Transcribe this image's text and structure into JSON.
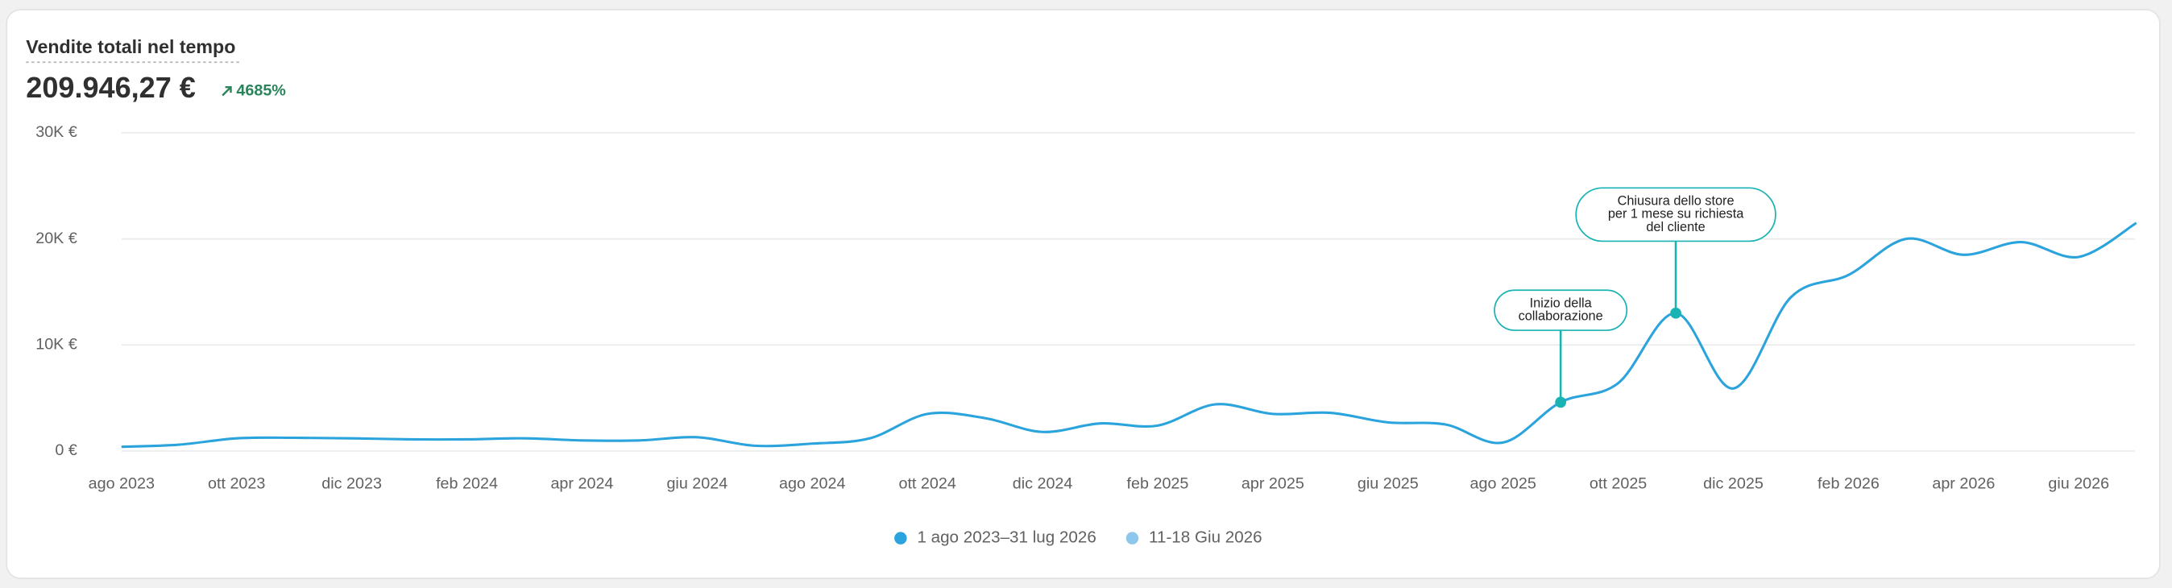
{
  "chart_data": {
    "type": "line",
    "title": "Vendite totali nel tempo",
    "total": "209.946,27 €",
    "change": "4685%",
    "categories": [
      "ago 2023",
      null,
      "ott 2023",
      null,
      "dic 2023",
      null,
      "feb 2024",
      null,
      "apr 2024",
      null,
      "giu 2024",
      null,
      "ago 2024",
      null,
      "ott 2024",
      null,
      "dic 2024",
      null,
      "feb 2025",
      null,
      "apr 2025",
      null,
      "giu 2025",
      null,
      "ago 2025",
      null,
      "ott 2025",
      null,
      "dic 2025",
      null,
      "feb 2026",
      null,
      "apr 2026",
      null,
      "giu 2026",
      null
    ],
    "series": [
      {
        "name": "1 ago 2023–31 lug 2026",
        "color": "#2ba3dc",
        "values": [
          400,
          600,
          1200,
          1250,
          1200,
          1100,
          1100,
          1200,
          1000,
          1000,
          1300,
          500,
          700,
          1200,
          3500,
          3100,
          1800,
          2600,
          2400,
          4400,
          3500,
          3600,
          2700,
          2500,
          800,
          4600,
          6400,
          13000,
          5900,
          14500,
          16600,
          20000,
          18500,
          19700,
          18300,
          21500
        ]
      },
      {
        "name": "11-18 Giu 2026",
        "color": "#8ec6ec",
        "values": [
          null,
          null,
          null,
          null,
          null,
          null,
          null,
          null,
          null,
          null,
          null,
          null,
          null,
          null,
          null,
          null,
          null,
          null,
          null,
          null,
          null,
          null,
          null,
          null,
          null,
          null,
          null,
          null,
          null,
          null,
          null,
          null,
          null,
          null,
          null,
          null
        ]
      }
    ],
    "annotations": [
      {
        "text": [
          "Inizio della",
          "collaborazione"
        ],
        "point": 25
      },
      {
        "text": [
          "Chiusura dello store",
          "per 1 mese su richiesta",
          "del cliente"
        ],
        "point": 27
      }
    ],
    "annotation_color": "#1ab3b3",
    "ylim": [
      0,
      30000
    ],
    "yticks": [
      {
        "value": 0,
        "label": "0 €"
      },
      {
        "value": 10000,
        "label": "10K €"
      },
      {
        "value": 20000,
        "label": "20K €"
      },
      {
        "value": 30000,
        "label": "30K €"
      }
    ],
    "grid": true
  }
}
